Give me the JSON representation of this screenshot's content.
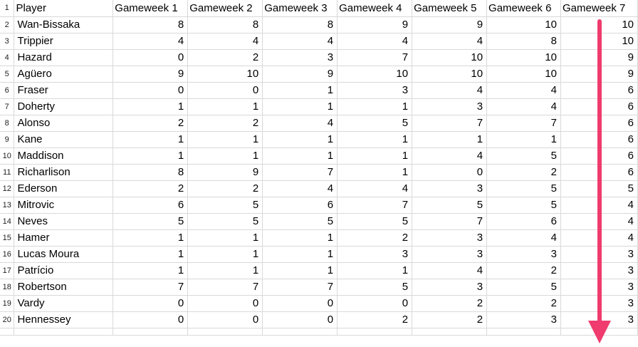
{
  "header": {
    "row_number": "1",
    "columns": [
      "Player",
      "Gameweek 1",
      "Gameweek 2",
      "Gameweek 3",
      "Gameweek 4",
      "Gameweek 5",
      "Gameweek 6",
      "Gameweek 7"
    ]
  },
  "rows": [
    {
      "num": "2",
      "player": "Wan-Bissaka",
      "values": [
        "8",
        "8",
        "8",
        "9",
        "9",
        "10",
        "10"
      ]
    },
    {
      "num": "3",
      "player": "Trippier",
      "values": [
        "4",
        "4",
        "4",
        "4",
        "4",
        "8",
        "10"
      ]
    },
    {
      "num": "4",
      "player": "Hazard",
      "values": [
        "0",
        "2",
        "3",
        "7",
        "10",
        "10",
        "9"
      ]
    },
    {
      "num": "5",
      "player": "Agüero",
      "values": [
        "9",
        "10",
        "9",
        "10",
        "10",
        "10",
        "9"
      ]
    },
    {
      "num": "6",
      "player": "Fraser",
      "values": [
        "0",
        "0",
        "1",
        "3",
        "4",
        "4",
        "6"
      ]
    },
    {
      "num": "7",
      "player": "Doherty",
      "values": [
        "1",
        "1",
        "1",
        "1",
        "3",
        "4",
        "6"
      ]
    },
    {
      "num": "8",
      "player": "Alonso",
      "values": [
        "2",
        "2",
        "4",
        "5",
        "7",
        "7",
        "6"
      ]
    },
    {
      "num": "9",
      "player": "Kane",
      "values": [
        "1",
        "1",
        "1",
        "1",
        "1",
        "1",
        "6"
      ]
    },
    {
      "num": "10",
      "player": "Maddison",
      "values": [
        "1",
        "1",
        "1",
        "1",
        "4",
        "5",
        "6"
      ]
    },
    {
      "num": "11",
      "player": "Richarlison",
      "values": [
        "8",
        "9",
        "7",
        "1",
        "0",
        "2",
        "6"
      ]
    },
    {
      "num": "12",
      "player": "Ederson",
      "values": [
        "2",
        "2",
        "4",
        "4",
        "3",
        "5",
        "5"
      ]
    },
    {
      "num": "13",
      "player": "Mitrovic",
      "values": [
        "6",
        "5",
        "6",
        "7",
        "5",
        "5",
        "4"
      ]
    },
    {
      "num": "14",
      "player": "Neves",
      "values": [
        "5",
        "5",
        "5",
        "5",
        "7",
        "6",
        "4"
      ]
    },
    {
      "num": "15",
      "player": "Hamer",
      "values": [
        "1",
        "1",
        "1",
        "2",
        "3",
        "4",
        "4"
      ]
    },
    {
      "num": "16",
      "player": "Lucas Moura",
      "values": [
        "1",
        "1",
        "1",
        "3",
        "3",
        "3",
        "3"
      ]
    },
    {
      "num": "17",
      "player": "Patrício",
      "values": [
        "1",
        "1",
        "1",
        "1",
        "4",
        "2",
        "3"
      ]
    },
    {
      "num": "18",
      "player": "Robertson",
      "values": [
        "7",
        "7",
        "7",
        "5",
        "3",
        "5",
        "3"
      ]
    },
    {
      "num": "19",
      "player": "Vardy",
      "values": [
        "0",
        "0",
        "0",
        "0",
        "2",
        "2",
        "3"
      ]
    },
    {
      "num": "20",
      "player": "Hennessey",
      "values": [
        "0",
        "0",
        "0",
        "2",
        "2",
        "3",
        "3"
      ]
    }
  ],
  "annotation": {
    "arrow_color": "#ef3b6e",
    "arrow_direction": "down"
  }
}
